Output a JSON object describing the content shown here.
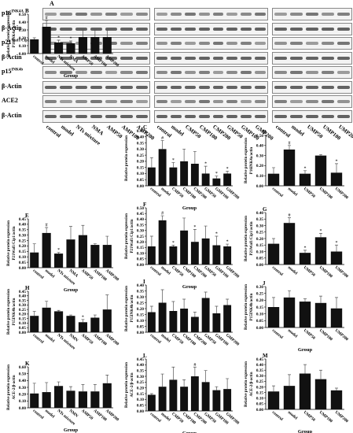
{
  "figure_letter_A": "A",
  "blot_rows": [
    {
      "label": "p16",
      "sup": "INK4A"
    },
    {
      "label": "β-Actin",
      "sup": ""
    },
    {
      "label": "p21",
      "sup": "Waf1/Cip1"
    },
    {
      "label": "β-Actin",
      "sup": ""
    },
    {
      "label": "p15",
      "sup": "INK4b"
    },
    {
      "label": "β-Actin",
      "sup": ""
    },
    {
      "label": "ACE2",
      "sup": ""
    },
    {
      "label": "β-Actin",
      "sup": ""
    }
  ],
  "blot_lane_groups": [
    [
      "control",
      "model",
      "NTs mixture",
      "NMA",
      "AMP50",
      "AMP100",
      "AMP200"
    ],
    [
      "control",
      "model",
      "CMP50",
      "CMP100",
      "CMP200",
      "GMP50",
      "GMP100",
      "GMP200"
    ],
    [
      "control",
      "model",
      "UMP50",
      "UMP100",
      "UMP200"
    ]
  ],
  "colors": {
    "bar": "#111111",
    "error": "#555555",
    "blot_bg": "#f3f3f3",
    "band": "#333333"
  },
  "chart_data": [
    {
      "id": "B",
      "type": "bar",
      "panel_letter": "B",
      "categories": [
        "control",
        "model",
        "NTs mixture",
        "NMA",
        "AMP50",
        "AMP100",
        "AMP200"
      ],
      "values": [
        0.18,
        0.34,
        0.14,
        0.13,
        0.21,
        0.21,
        0.21
      ],
      "errors": [
        0.02,
        0.08,
        0.03,
        0.03,
        0.09,
        0.09,
        0.09
      ],
      "marks": [
        "",
        "#",
        "*",
        "*",
        "",
        "",
        ""
      ],
      "ylabel": "P16INK4a/actin",
      "xlabel": "Group",
      "ylim": [
        0,
        0.5
      ],
      "yticks": [
        "0.00",
        "0.10",
        "0.20",
        "0.30",
        "0.40",
        "0.50"
      ],
      "ylabel_outer": "Relative protein expression",
      "xlabel_bold": true
    },
    {
      "id": "C",
      "type": "bar",
      "panel_letter": "C",
      "categories": [
        "control",
        "model",
        "CMP50",
        "CMP100",
        "CMP200",
        "GMP50",
        "GMP100",
        "GMP200"
      ],
      "values": [
        0.15,
        0.3,
        0.15,
        0.2,
        0.18,
        0.1,
        0.06,
        0.1
      ],
      "errors": [
        0.08,
        0.07,
        0.04,
        0.1,
        0.1,
        0.06,
        0.02,
        0.02
      ],
      "marks": [
        "",
        "#",
        "*",
        "",
        "",
        "*",
        "*",
        "*"
      ],
      "ylabel": "",
      "xlabel": "Group",
      "ylim": [
        0,
        0.45
      ],
      "yticks": [
        "0.00",
        "0.05",
        "0.10",
        "0.15",
        "0.20",
        "0.25",
        "0.30",
        "0.35",
        "0.40",
        "0.45"
      ],
      "ylabel_outer": "Relative protein expression"
    },
    {
      "id": "D",
      "type": "bar",
      "panel_letter": "D",
      "categories": [
        "control",
        "model",
        "UMP50",
        "UMP100",
        "UMP200"
      ],
      "values": [
        0.12,
        0.36,
        0.12,
        0.3,
        0.13
      ],
      "errors": [
        0.06,
        0.04,
        0.03,
        0.01,
        0.09
      ],
      "marks": [
        "",
        "#",
        "*",
        "",
        "*"
      ],
      "ylabel": "P16INK4a/actin",
      "xlabel": "",
      "ylim": [
        0,
        0.5
      ],
      "yticks": [
        "0.00",
        "0.10",
        "0.20",
        "0.30",
        "0.40",
        "0.50"
      ],
      "ylabel_outer": "Relative protein expression"
    },
    {
      "id": "E",
      "type": "bar",
      "panel_letter": "E",
      "categories": [
        "control",
        "model",
        "NTs mixture",
        "NMA",
        "AMP50",
        "AMP100",
        "AMP200"
      ],
      "values": [
        0.14,
        0.32,
        0.13,
        0.26,
        0.3,
        0.21,
        0.21
      ],
      "errors": [
        0.08,
        0.05,
        0.01,
        0.12,
        0.09,
        0.01,
        0.08
      ],
      "marks": [
        "",
        "#",
        "*",
        "",
        "",
        "",
        ""
      ],
      "ylabel": "P21Waf1/Cip1/actin",
      "xlabel": "Group",
      "ylim": [
        0,
        0.45
      ],
      "yticks": [
        "0.00",
        "0.05",
        "0.10",
        "0.15",
        "0.20",
        "0.25",
        "0.30",
        "0.35",
        "0.40",
        "0.45"
      ],
      "ylabel_outer": "Relative protein expression"
    },
    {
      "id": "F",
      "type": "bar",
      "panel_letter": "F",
      "categories": [
        "control",
        "model",
        "CMP50",
        "CMP100",
        "CMP200",
        "GMP50",
        "GMP100",
        "GMP200"
      ],
      "values": [
        0.16,
        0.39,
        0.16,
        0.3,
        0.2,
        0.23,
        0.17,
        0.16
      ],
      "errors": [
        0.09,
        0.04,
        0.01,
        0.11,
        0.11,
        0.11,
        0.08,
        0.02
      ],
      "marks": [
        "",
        "#",
        "*",
        "",
        "*",
        "",
        "*",
        "*"
      ],
      "ylabel": "P21Waf1/Cip1/actin",
      "xlabel": "Group",
      "ylim": [
        0,
        0.5
      ],
      "yticks": [
        "0.00",
        "0.05",
        "0.10",
        "0.15",
        "0.20",
        "0.25",
        "0.30",
        "0.35",
        "0.40",
        "0.45",
        "0.50"
      ],
      "ylabel_outer": "Relative protein expression"
    },
    {
      "id": "G",
      "type": "bar",
      "panel_letter": "G",
      "categories": [
        "control",
        "model",
        "UMP50",
        "UMP100",
        "UMP200"
      ],
      "values": [
        0.16,
        0.32,
        0.09,
        0.21,
        0.1
      ],
      "errors": [
        0.04,
        0.04,
        0.02,
        0.03,
        0.05
      ],
      "marks": [
        "",
        "#",
        "*",
        "*",
        "*"
      ],
      "ylabel": "P21Waf1/Cip1/actin",
      "xlabel": "",
      "ylim": [
        0,
        0.4
      ],
      "yticks": [
        "0.00",
        "0.05",
        "0.10",
        "0.15",
        "0.20",
        "0.25",
        "0.30",
        "0.35",
        "0.40"
      ],
      "ylabel_outer": "Relative protein expression"
    },
    {
      "id": "H",
      "type": "bar",
      "panel_letter": "H",
      "categories": [
        "control",
        "model",
        "NTs mixture",
        "NMN",
        "AMP50",
        "AMP100",
        "AMP200"
      ],
      "values": [
        0.18,
        0.27,
        0.23,
        0.18,
        0.11,
        0.16,
        0.25
      ],
      "errors": [
        0.05,
        0.07,
        0.01,
        0.01,
        0.03,
        0.03,
        0.16
      ],
      "marks": [
        "",
        "",
        "",
        "",
        "*",
        "",
        ""
      ],
      "ylabel": "P15INK4b/actin",
      "xlabel": "",
      "ylim": [
        0,
        0.45
      ],
      "yticks": [
        "0.00",
        "0.05",
        "0.10",
        "0.15",
        "0.20",
        "0.25",
        "0.30",
        "0.35",
        "0.40",
        "0.45"
      ],
      "ylabel_outer": "Relative protein expression"
    },
    {
      "id": "I",
      "type": "bar",
      "panel_letter": "I",
      "categories": [
        "control",
        "model",
        "CMP50",
        "CMP100",
        "CMP200",
        "GMP50",
        "GMP100",
        "GMP200"
      ],
      "values": [
        0.17,
        0.25,
        0.18,
        0.2,
        0.13,
        0.29,
        0.16,
        0.23
      ],
      "errors": [
        0.05,
        0.11,
        0.08,
        0.08,
        0.04,
        0.05,
        0.06,
        0.05
      ],
      "marks": [
        "",
        "",
        "",
        "",
        "",
        "",
        "",
        ""
      ],
      "ylabel": "P15INK4b/actin",
      "xlabel": "",
      "ylim": [
        0,
        0.4
      ],
      "yticks": [
        "0.00",
        "0.05",
        "0.10",
        "0.15",
        "0.20",
        "0.25",
        "0.30",
        "0.35",
        "0.40"
      ],
      "ylabel_outer": "Relative protein expression"
    },
    {
      "id": "J",
      "type": "bar",
      "panel_letter": "J",
      "categories": [
        "control",
        "model",
        "UMP50",
        "UMP100",
        "UMP200"
      ],
      "values": [
        0.15,
        0.22,
        0.19,
        0.18,
        0.14
      ],
      "errors": [
        0.07,
        0.05,
        0.02,
        0.05,
        0.08
      ],
      "marks": [
        "",
        "",
        "",
        "",
        ""
      ],
      "ylabel": "P15INK4b/actin",
      "xlabel": "Group",
      "ylim": [
        0,
        0.3
      ],
      "yticks": [
        "0.00",
        "0.05",
        "0.10",
        "0.15",
        "0.20",
        "0.25",
        "0.30"
      ],
      "ylabel_outer": "Relative protein expression"
    },
    {
      "id": "K",
      "type": "bar",
      "panel_letter": "K",
      "categories": [
        "control",
        "model",
        "NTs mixture",
        "NMN",
        "AMP50",
        "AMP100",
        "AMP200"
      ],
      "values": [
        0.21,
        0.23,
        0.32,
        0.25,
        0.24,
        0.24,
        0.36
      ],
      "errors": [
        0.15,
        0.14,
        0.06,
        0.06,
        0.1,
        0.1,
        0.12
      ],
      "marks": [
        "",
        "",
        "",
        "",
        "",
        "",
        ""
      ],
      "ylabel": "ACE-2/β-actin",
      "xlabel": "Group",
      "ylim": [
        0,
        0.6
      ],
      "yticks": [
        "0.00",
        "0.10",
        "0.20",
        "0.30",
        "0.40",
        "0.50",
        "0.60"
      ],
      "ylabel_outer": "Relative protein expression"
    },
    {
      "id": "L",
      "type": "bar",
      "panel_letter": "L",
      "categories": [
        "control",
        "model",
        "CMP50",
        "CMP100",
        "CMP200",
        "GMP50",
        "GMP100",
        "GMP200"
      ],
      "values": [
        0.14,
        0.21,
        0.27,
        0.21,
        0.3,
        0.25,
        0.18,
        0.19
      ],
      "errors": [
        0.01,
        0.11,
        0.11,
        0.06,
        0.08,
        0.1,
        0.03,
        0.09
      ],
      "marks": [
        "",
        "",
        "",
        "",
        "#",
        "",
        "",
        ""
      ],
      "ylabel": "ACE-2/β-actin",
      "xlabel": "Group",
      "ylim": [
        0,
        0.45
      ],
      "yticks": [
        "0.00",
        "0.05",
        "0.10",
        "0.15",
        "0.20",
        "0.25",
        "0.30",
        "0.35",
        "0.40",
        "0.45"
      ],
      "ylabel_outer": "Relative protein expression"
    },
    {
      "id": "M",
      "type": "bar",
      "panel_letter": "M",
      "categories": [
        "control",
        "model",
        "UMP50",
        "UMP100",
        "UMP200"
      ],
      "values": [
        0.16,
        0.21,
        0.32,
        0.27,
        0.17
      ],
      "errors": [
        0.05,
        0.1,
        0.08,
        0.08,
        0.02
      ],
      "marks": [
        "",
        "",
        "",
        "",
        ""
      ],
      "ylabel": "ACE-2/β-actin",
      "xlabel": "Group",
      "ylim": [
        0,
        0.45
      ],
      "yticks": [
        "0.00",
        "0.05",
        "0.10",
        "0.15",
        "0.20",
        "0.25",
        "0.30",
        "0.35",
        "0.40",
        "0.45"
      ],
      "ylabel_outer": "Relative protein expression"
    }
  ]
}
